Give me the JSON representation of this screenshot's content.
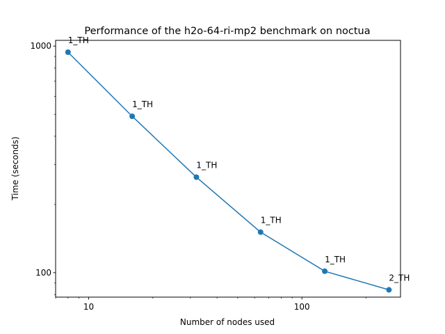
{
  "chart_data": {
    "type": "line",
    "title": "Performance of the h2o-64-ri-mp2 benchmark on noctua",
    "xlabel": "Number of nodes used",
    "ylabel": "Time (seconds)",
    "xscale": "log",
    "yscale": "log",
    "xlim": [
      7,
      290
    ],
    "ylim": [
      78,
      1060
    ],
    "xticks": [
      {
        "value": 10,
        "label": "10"
      },
      {
        "value": 100,
        "label": "100"
      }
    ],
    "yticks": [
      {
        "value": 100,
        "label": "100"
      },
      {
        "value": 1000,
        "label": "1000"
      }
    ],
    "grid": false,
    "legend": "none",
    "series": [
      {
        "color": "#1f77b4",
        "points": [
          {
            "x": 8,
            "y": 940,
            "label": "1_TH"
          },
          {
            "x": 16,
            "y": 490,
            "label": "1_TH"
          },
          {
            "x": 32,
            "y": 264,
            "label": "1_TH"
          },
          {
            "x": 64,
            "y": 151,
            "label": "1_TH"
          },
          {
            "x": 128,
            "y": 101.5,
            "label": "1_TH"
          },
          {
            "x": 256,
            "y": 84,
            "label": "2_TH"
          }
        ]
      }
    ]
  }
}
